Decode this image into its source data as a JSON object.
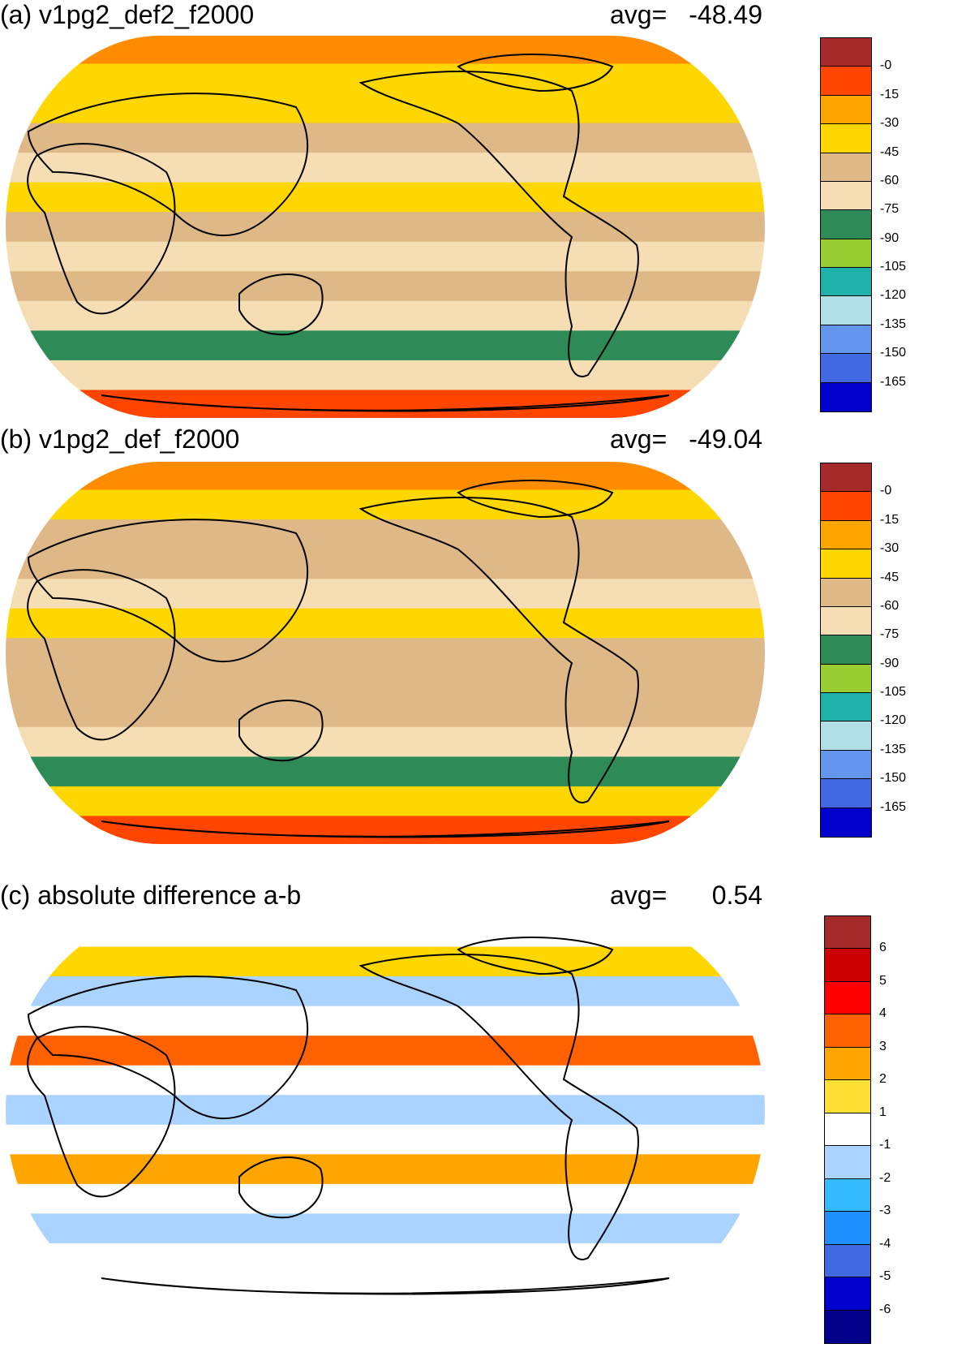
{
  "panels": [
    {
      "title": "(a) v1pg2_def2_f2000",
      "avg_label": "avg=",
      "avg_value": "-48.49",
      "colorbar": {
        "colors": [
          "#a52a2a",
          "#ff4500",
          "#ffa500",
          "#ffd700",
          "#deb887",
          "#f5deb3",
          "#2e8b57",
          "#9acd32",
          "#20b2aa",
          "#b0e0e6",
          "#6495ed",
          "#4169e1",
          "#0000cd"
        ],
        "labels": [
          "-0",
          "-15",
          "-30",
          "-45",
          "-60",
          "-75",
          "-90",
          "-105",
          "-120",
          "-135",
          "-150",
          "-165"
        ]
      },
      "bands": [
        "#ff8c00",
        "#ffd700",
        "#ffd700",
        "#deb887",
        "#f5deb3",
        "#ffd700",
        "#deb887",
        "#f5deb3",
        "#deb887",
        "#f5deb3",
        "#2e8b57",
        "#f5deb3",
        "#ff4500"
      ]
    },
    {
      "title": "(b) v1pg2_def_f2000",
      "avg_label": "avg=",
      "avg_value": "-49.04",
      "colorbar": {
        "colors": [
          "#a52a2a",
          "#ff4500",
          "#ffa500",
          "#ffd700",
          "#deb887",
          "#f5deb3",
          "#2e8b57",
          "#9acd32",
          "#20b2aa",
          "#b0e0e6",
          "#6495ed",
          "#4169e1",
          "#0000cd"
        ],
        "labels": [
          "-0",
          "-15",
          "-30",
          "-45",
          "-60",
          "-75",
          "-90",
          "-105",
          "-120",
          "-135",
          "-150",
          "-165"
        ]
      },
      "bands": [
        "#ff8c00",
        "#ffd700",
        "#deb887",
        "#deb887",
        "#f5deb3",
        "#ffd700",
        "#deb887",
        "#deb887",
        "#deb887",
        "#f5deb3",
        "#2e8b57",
        "#ffd700",
        "#ff4500"
      ]
    },
    {
      "title": "(c) absolute difference a-b",
      "avg_label": "avg=",
      "avg_value": "0.54",
      "colorbar": {
        "colors": [
          "#a52a2a",
          "#cd0000",
          "#ff0000",
          "#ff6000",
          "#ffa500",
          "#ffe033",
          "#ffffff",
          "#aad4ff",
          "#33bbff",
          "#1e90ff",
          "#4169e1",
          "#0000cd",
          "#00008b"
        ],
        "labels": [
          "6",
          "5",
          "4",
          "3",
          "2",
          "1",
          "-1",
          "-2",
          "-3",
          "-4",
          "-5",
          "-6"
        ]
      },
      "bands": [
        "#ffffff",
        "#ffd700",
        "#aad4ff",
        "#ffffff",
        "#ff6000",
        "#ffffff",
        "#aad4ff",
        "#ffffff",
        "#ffa500",
        "#ffffff",
        "#aad4ff",
        "#ffffff",
        "#ffffff"
      ]
    }
  ]
}
